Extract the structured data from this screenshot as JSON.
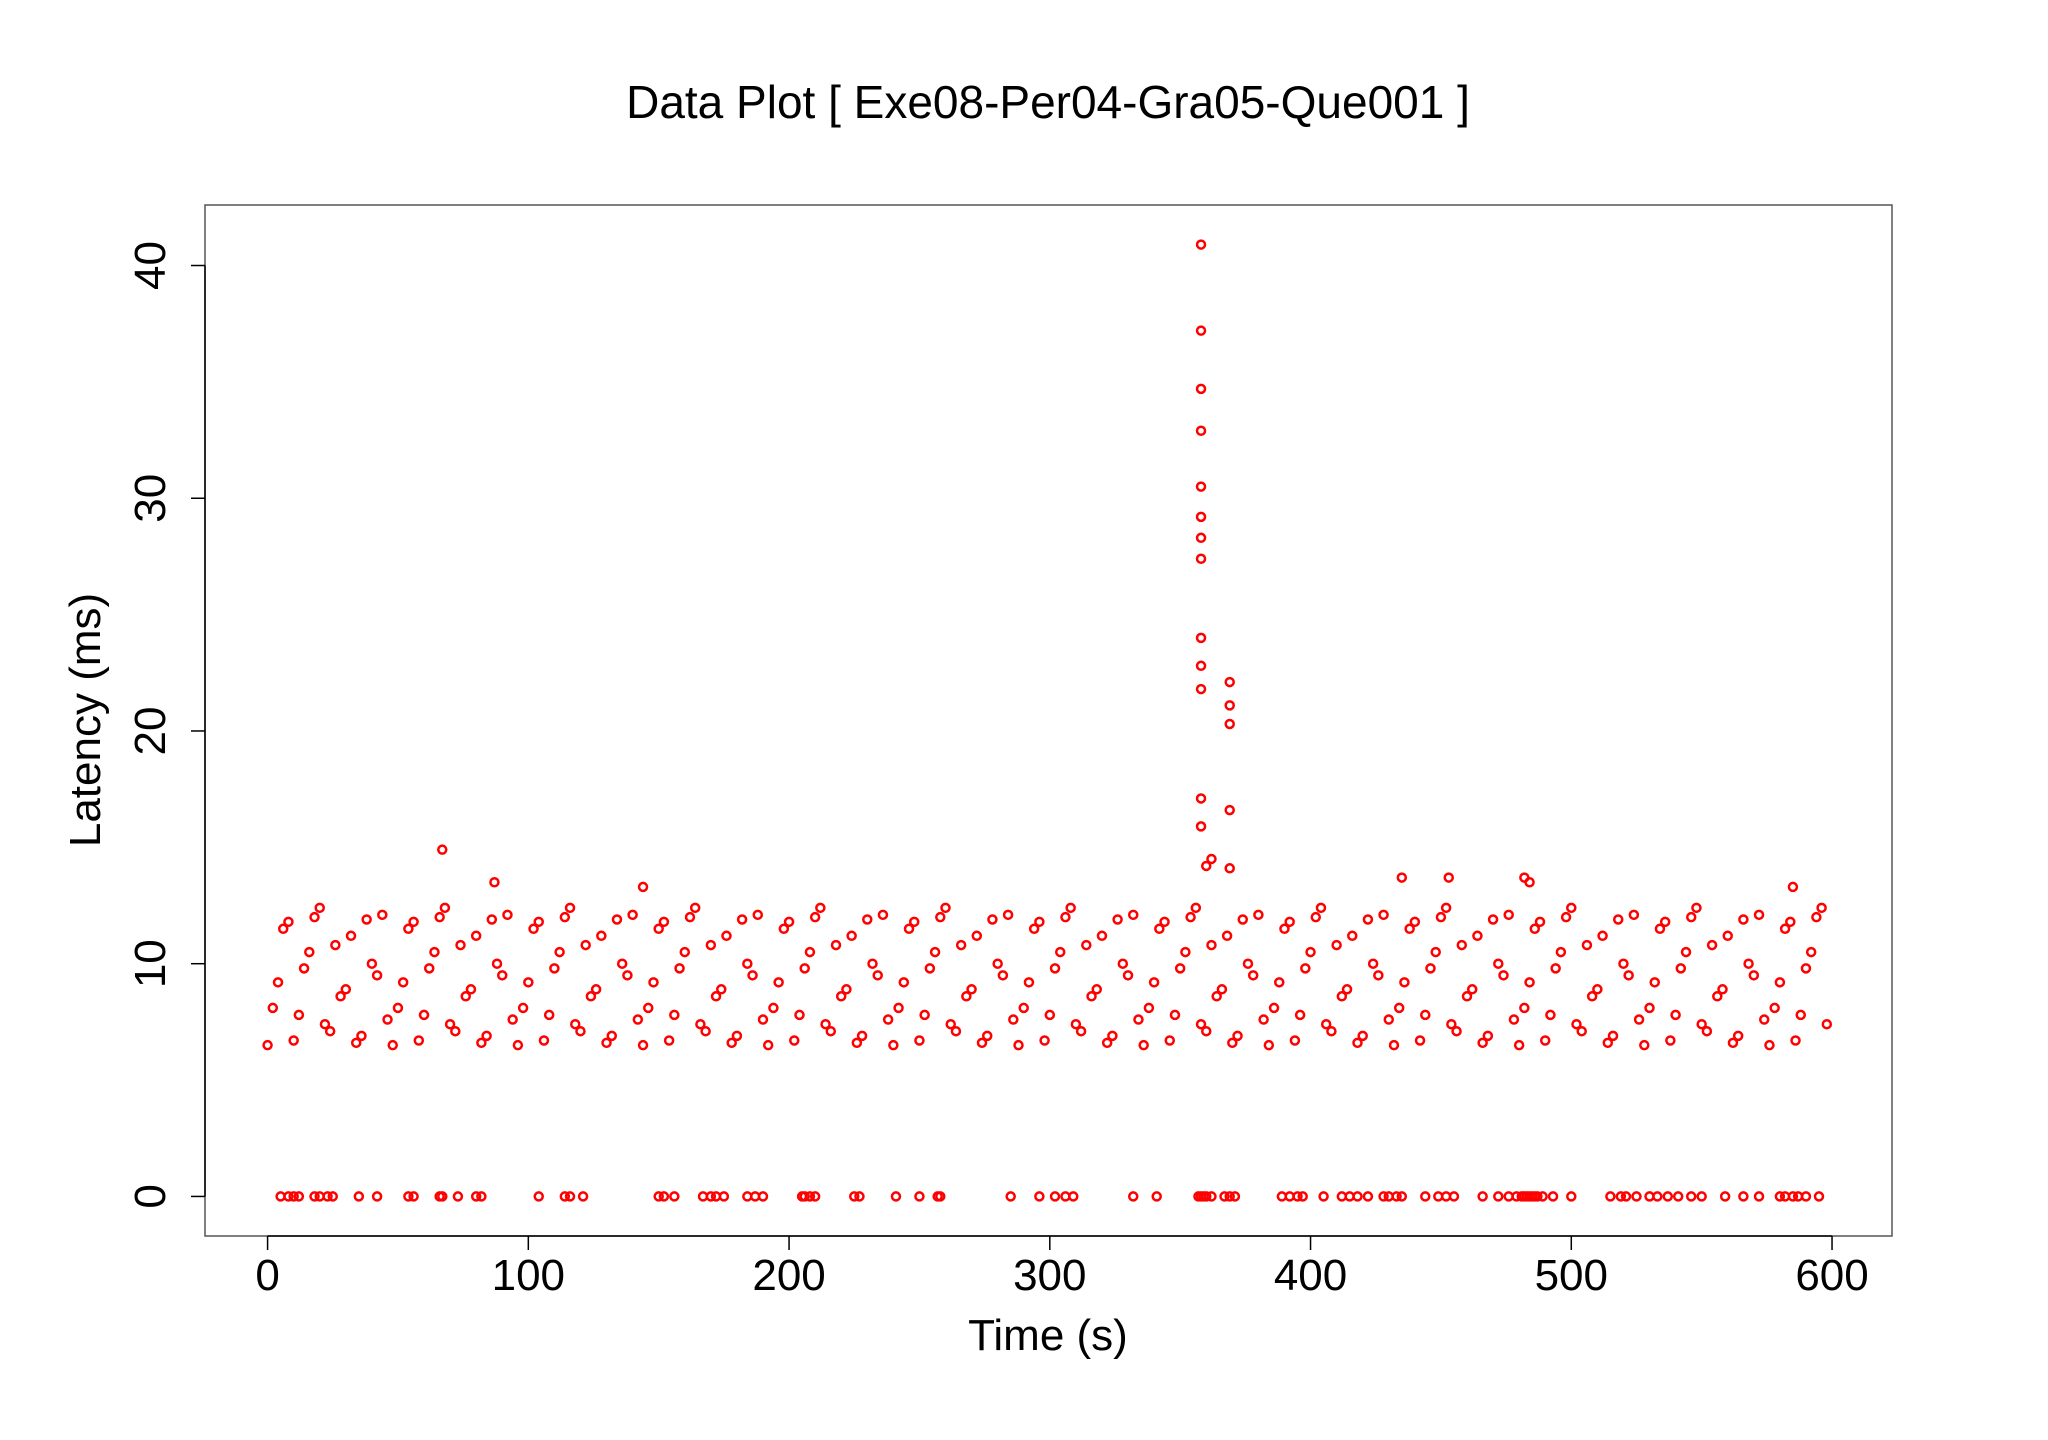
{
  "chart_data": {
    "type": "scatter",
    "title": "Data Plot [ Exe08-Per04-Gra05-Que001 ]",
    "x_label": "Time (s)",
    "y_label": "Latency (ms)",
    "color": "#ff0000",
    "xlim": [
      -24,
      623
    ],
    "ylim": [
      -1.7,
      42.6
    ],
    "xticks": [
      0,
      100,
      200,
      300,
      400,
      500,
      600
    ],
    "yticks": [
      0,
      10,
      20,
      30,
      40
    ],
    "x": [
      0,
      4,
      8,
      12,
      16,
      20,
      24,
      28,
      32,
      36,
      40,
      44,
      48,
      52,
      56,
      60,
      64,
      68,
      72,
      76,
      80,
      84,
      88,
      92,
      96,
      100,
      104,
      108,
      112,
      116,
      120,
      124,
      128,
      132,
      136,
      140,
      144,
      148,
      152,
      156,
      160,
      164,
      168,
      172,
      176,
      180,
      184,
      188,
      192,
      196,
      200,
      204,
      208,
      212,
      216,
      220,
      224,
      228,
      232,
      236,
      240,
      244,
      248,
      252,
      256,
      260,
      264,
      268,
      272,
      276,
      280,
      284,
      288,
      292,
      296,
      300,
      304,
      308,
      312,
      316,
      320,
      324,
      328,
      332,
      336,
      340,
      344,
      348,
      352,
      356,
      360,
      364,
      368,
      372,
      376,
      380,
      384,
      388,
      392,
      396,
      400,
      404,
      408,
      412,
      416,
      420,
      424,
      428,
      432,
      436,
      440,
      444,
      448,
      452,
      456,
      460,
      464,
      468,
      472,
      476,
      480,
      484,
      488,
      492,
      496,
      500,
      504,
      508,
      512,
      516,
      520,
      524,
      528,
      532,
      536,
      540,
      544,
      548,
      552,
      556,
      560,
      564,
      568,
      572,
      576,
      580,
      584,
      588,
      592,
      596,
      2,
      6,
      10,
      14,
      18,
      22,
      26,
      30,
      34,
      38,
      42,
      46,
      50,
      54,
      58,
      62,
      66,
      70,
      74,
      78,
      82,
      86,
      90,
      94,
      98,
      102,
      106,
      110,
      114,
      118,
      122,
      126,
      130,
      134,
      138,
      142,
      146,
      150,
      154,
      158,
      162,
      166,
      170,
      174,
      178,
      182,
      186,
      190,
      194,
      198,
      202,
      206,
      210,
      214,
      218,
      222,
      226,
      230,
      234,
      238,
      242,
      246,
      250,
      254,
      258,
      262,
      266,
      270,
      274,
      278,
      282,
      286,
      290,
      294,
      298,
      302,
      306,
      310,
      314,
      318,
      322,
      326,
      330,
      334,
      338,
      342,
      346,
      350,
      354,
      358,
      362,
      366,
      370,
      374,
      378,
      382,
      386,
      390,
      394,
      398,
      402,
      406,
      410,
      414,
      418,
      422,
      426,
      430,
      434,
      438,
      442,
      446,
      450,
      454,
      458,
      462,
      466,
      470,
      474,
      478,
      482,
      486,
      490,
      494,
      498,
      502,
      506,
      510,
      514,
      518,
      522,
      526,
      530,
      534,
      538,
      542,
      546,
      550,
      554,
      558,
      562,
      566,
      570,
      574,
      578,
      582,
      586,
      590,
      594,
      598,
      5,
      8,
      10,
      12,
      18,
      20,
      23,
      25,
      35,
      42,
      54,
      56,
      66,
      67,
      73,
      80,
      82,
      104,
      114,
      116,
      121,
      150,
      152,
      156,
      167,
      170,
      172,
      175,
      184,
      187,
      190,
      205,
      206,
      208,
      210,
      225,
      227,
      241,
      250,
      257,
      258,
      285,
      296,
      302,
      306,
      309,
      332,
      341,
      357,
      358,
      359,
      360,
      362,
      367,
      369,
      371,
      389,
      392,
      395,
      397,
      405,
      412,
      415,
      418,
      422,
      428,
      430,
      433,
      435,
      444,
      449,
      452,
      455,
      466,
      472,
      476,
      479,
      481,
      482,
      483,
      484,
      485,
      486,
      487,
      489,
      493,
      500,
      515,
      519,
      521,
      525,
      530,
      533,
      537,
      541,
      546,
      550,
      559,
      566,
      572,
      580,
      582,
      585,
      587,
      590,
      595,
      358,
      358,
      358,
      358,
      358,
      358,
      358,
      358,
      358,
      358,
      358,
      358,
      358,
      369,
      369,
      369,
      369,
      369,
      360,
      362,
      67,
      87,
      144,
      435,
      453,
      482,
      484,
      585
    ],
    "values": [
      6.5,
      9.2,
      11.8,
      7.8,
      10.5,
      12.4,
      7.1,
      8.6,
      11.2,
      6.9,
      10.0,
      12.1,
      6.5,
      9.2,
      11.8,
      7.8,
      10.5,
      12.4,
      7.1,
      8.6,
      11.2,
      6.9,
      10.0,
      12.1,
      6.5,
      9.2,
      11.8,
      7.8,
      10.5,
      12.4,
      7.1,
      8.6,
      11.2,
      6.9,
      10.0,
      12.1,
      6.5,
      9.2,
      11.8,
      7.8,
      10.5,
      12.4,
      7.1,
      8.6,
      11.2,
      6.9,
      10.0,
      12.1,
      6.5,
      9.2,
      11.8,
      7.8,
      10.5,
      12.4,
      7.1,
      8.6,
      11.2,
      6.9,
      10.0,
      12.1,
      6.5,
      9.2,
      11.8,
      7.8,
      10.5,
      12.4,
      7.1,
      8.6,
      11.2,
      6.9,
      10.0,
      12.1,
      6.5,
      9.2,
      11.8,
      7.8,
      10.5,
      12.4,
      7.1,
      8.6,
      11.2,
      6.9,
      10.0,
      12.1,
      6.5,
      9.2,
      11.8,
      7.8,
      10.5,
      12.4,
      7.1,
      8.6,
      11.2,
      6.9,
      10.0,
      12.1,
      6.5,
      9.2,
      11.8,
      7.8,
      10.5,
      12.4,
      7.1,
      8.6,
      11.2,
      6.9,
      10.0,
      12.1,
      6.5,
      9.2,
      11.8,
      7.8,
      10.5,
      12.4,
      7.1,
      8.6,
      11.2,
      6.9,
      10.0,
      12.1,
      6.5,
      9.2,
      11.8,
      7.8,
      10.5,
      12.4,
      7.1,
      8.6,
      11.2,
      6.9,
      10.0,
      12.1,
      6.5,
      9.2,
      11.8,
      7.8,
      10.5,
      12.4,
      7.1,
      8.6,
      11.2,
      6.9,
      10.0,
      12.1,
      6.5,
      9.2,
      11.8,
      7.8,
      10.5,
      12.4,
      8.1,
      11.5,
      6.7,
      9.8,
      12.0,
      7.4,
      10.8,
      8.9,
      6.6,
      11.9,
      9.5,
      7.6,
      8.1,
      11.5,
      6.7,
      9.8,
      12.0,
      7.4,
      10.8,
      8.9,
      6.6,
      11.9,
      9.5,
      7.6,
      8.1,
      11.5,
      6.7,
      9.8,
      12.0,
      7.4,
      10.8,
      8.9,
      6.6,
      11.9,
      9.5,
      7.6,
      8.1,
      11.5,
      6.7,
      9.8,
      12.0,
      7.4,
      10.8,
      8.9,
      6.6,
      11.9,
      9.5,
      7.6,
      8.1,
      11.5,
      6.7,
      9.8,
      12.0,
      7.4,
      10.8,
      8.9,
      6.6,
      11.9,
      9.5,
      7.6,
      8.1,
      11.5,
      6.7,
      9.8,
      12.0,
      7.4,
      10.8,
      8.9,
      6.6,
      11.9,
      9.5,
      7.6,
      8.1,
      11.5,
      6.7,
      9.8,
      12.0,
      7.4,
      10.8,
      8.9,
      6.6,
      11.9,
      9.5,
      7.6,
      8.1,
      11.5,
      6.7,
      9.8,
      12.0,
      7.4,
      10.8,
      8.9,
      6.6,
      11.9,
      9.5,
      7.6,
      8.1,
      11.5,
      6.7,
      9.8,
      12.0,
      7.4,
      10.8,
      8.9,
      6.6,
      11.9,
      9.5,
      7.6,
      8.1,
      11.5,
      6.7,
      9.8,
      12.0,
      7.4,
      10.8,
      8.9,
      6.6,
      11.9,
      9.5,
      7.6,
      8.1,
      11.5,
      6.7,
      9.8,
      12.0,
      7.4,
      10.8,
      8.9,
      6.6,
      11.9,
      9.5,
      7.6,
      8.1,
      11.5,
      6.7,
      9.8,
      12.0,
      7.4,
      10.8,
      8.9,
      6.6,
      11.9,
      9.5,
      7.6,
      8.1,
      11.5,
      6.7,
      9.8,
      12.0,
      7.4,
      0,
      0,
      0,
      0,
      0,
      0,
      0,
      0,
      0,
      0,
      0,
      0,
      0,
      0,
      0,
      0,
      0,
      0,
      0,
      0,
      0,
      0,
      0,
      0,
      0,
      0,
      0,
      0,
      0,
      0,
      0,
      0,
      0,
      0,
      0,
      0,
      0,
      0,
      0,
      0,
      0,
      0,
      0,
      0,
      0,
      0,
      0,
      0,
      0,
      0,
      0,
      0,
      0,
      0,
      0,
      0,
      0,
      0,
      0,
      0,
      0,
      0,
      0,
      0,
      0,
      0,
      0,
      0,
      0,
      0,
      0,
      0,
      0,
      0,
      0,
      0,
      0,
      0,
      0,
      0,
      0,
      0,
      0,
      0,
      0,
      0,
      0,
      0,
      0,
      0,
      0,
      0,
      0,
      0,
      0,
      0,
      0,
      0,
      0,
      0,
      0,
      0,
      0,
      0,
      0,
      0,
      40.9,
      37.2,
      34.7,
      32.9,
      30.5,
      29.2,
      28.3,
      27.4,
      24.0,
      22.8,
      21.8,
      17.1,
      15.9,
      22.1,
      21.1,
      20.3,
      16.6,
      14.1,
      14.2,
      14.5,
      14.9,
      13.5,
      13.3,
      13.7,
      13.7,
      13.7,
      13.5,
      13.3
    ]
  }
}
